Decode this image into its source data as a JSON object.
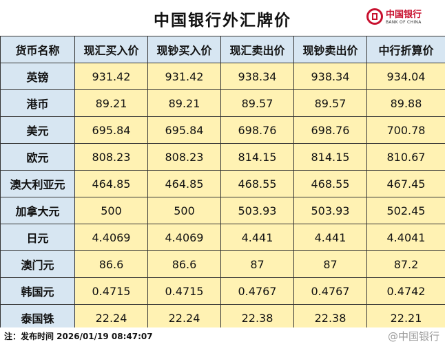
{
  "title": "中国银行外汇牌价",
  "logo": {
    "cn": "中国银行",
    "en": "BANK OF CHINA"
  },
  "headers": [
    "货币名称",
    "现汇买入价",
    "现钞买入价",
    "现汇卖出价",
    "现钞卖出价",
    "中行折算价"
  ],
  "rows": [
    [
      "英镑",
      "931.42",
      "931.42",
      "938.34",
      "938.34",
      "934.04"
    ],
    [
      "港币",
      "89.21",
      "89.21",
      "89.57",
      "89.57",
      "89.88"
    ],
    [
      "美元",
      "695.84",
      "695.84",
      "698.76",
      "698.76",
      "700.78"
    ],
    [
      "欧元",
      "808.23",
      "808.23",
      "814.15",
      "814.15",
      "810.67"
    ],
    [
      "澳大利亚元",
      "464.85",
      "464.85",
      "468.55",
      "468.55",
      "467.45"
    ],
    [
      "加拿大元",
      "500",
      "500",
      "503.93",
      "503.93",
      "502.45"
    ],
    [
      "日元",
      "4.4069",
      "4.4069",
      "4.441",
      "4.441",
      "4.4041"
    ],
    [
      "澳门元",
      "86.6",
      "86.6",
      "87",
      "87",
      "87.2"
    ],
    [
      "韩国元",
      "0.4715",
      "0.4715",
      "0.4767",
      "0.4767",
      "0.4742"
    ],
    [
      "泰国铢",
      "22.24",
      "22.24",
      "22.38",
      "22.38",
      "22.21"
    ]
  ],
  "footer": {
    "note": "注：发布时间 2026/01/19 08:47:07",
    "watermark": "@中国银行"
  },
  "colors": {
    "header_bg": "#d7e6f2",
    "value_bg": "#fff2b3",
    "brand_red": "#c8102e"
  }
}
